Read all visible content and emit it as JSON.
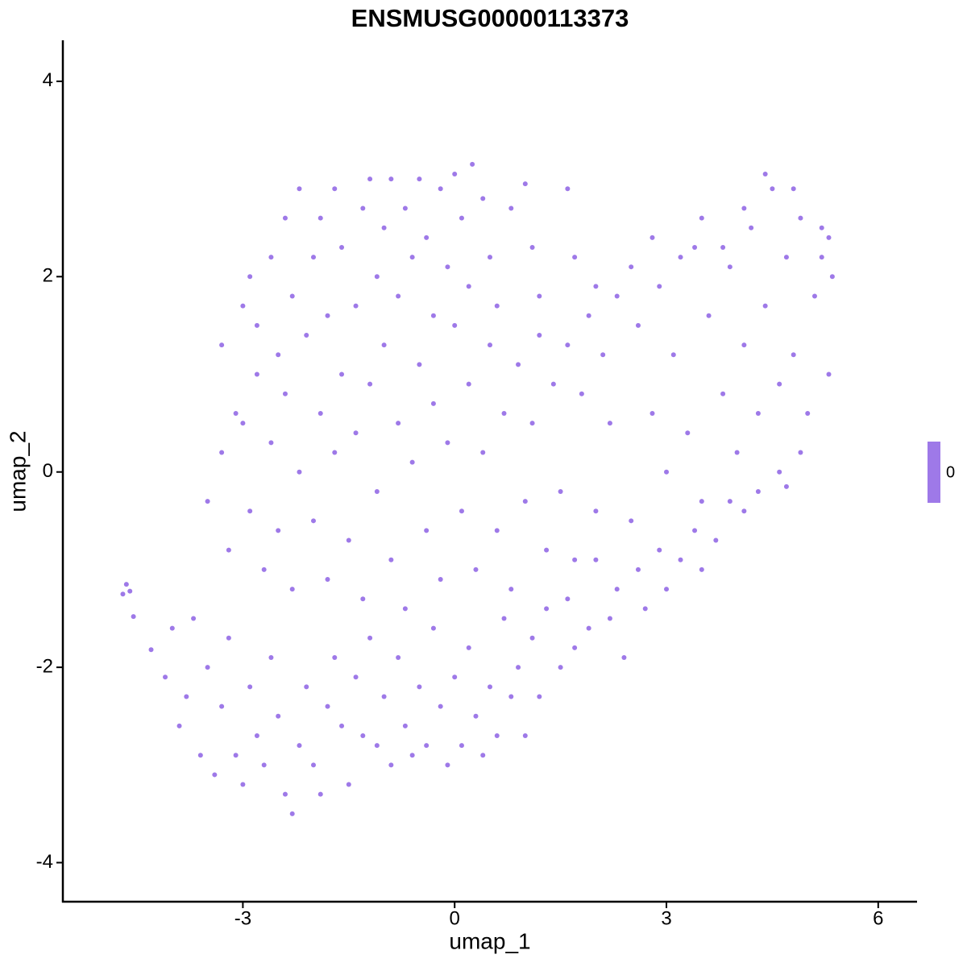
{
  "chart_data": {
    "type": "scatter",
    "title": "ENSMUSG00000113373",
    "x_label": "umap_1",
    "y_label": "umap_2",
    "xlim": [
      -5.55,
      6.55
    ],
    "ylim": [
      -4.4,
      4.42
    ],
    "xticks": [
      -3,
      0,
      3,
      6
    ],
    "yticks": [
      -4,
      -2,
      0,
      2,
      4
    ],
    "grid": false,
    "legend": {
      "labels": [
        0
      ],
      "color": "#9e79e8"
    },
    "x": [
      -4.7,
      -4.65,
      -4.6,
      -4.55,
      -4.3,
      -4.1,
      -4.0,
      -3.9,
      -3.8,
      -3.7,
      -3.6,
      -3.5,
      -3.4,
      -3.3,
      -3.2,
      -3.1,
      -3.0,
      -2.9,
      -2.8,
      -2.7,
      -2.6,
      -2.5,
      -2.4,
      -2.3,
      -2.2,
      -2.1,
      -2.0,
      -1.9,
      -1.8,
      -1.7,
      -1.6,
      -1.5,
      -1.4,
      -1.3,
      -1.2,
      -1.1,
      -1.0,
      -0.9,
      -0.8,
      -0.7,
      -0.6,
      -0.5,
      -0.4,
      -0.3,
      -0.2,
      -0.1,
      0.0,
      0.1,
      0.2,
      0.3,
      0.4,
      0.5,
      0.6,
      0.7,
      0.8,
      0.9,
      1.0,
      1.1,
      1.2,
      1.3,
      1.5,
      1.6,
      1.7,
      1.9,
      2.0,
      2.2,
      2.3,
      2.4,
      2.6,
      2.7,
      2.9,
      3.0,
      3.2,
      3.4,
      3.5,
      3.7,
      3.9,
      4.1,
      4.3,
      4.6,
      4.7,
      4.9,
      -3.5,
      -3.3,
      -3.2,
      -3.0,
      -2.9,
      -2.8,
      -2.7,
      -2.6,
      -2.5,
      -2.4,
      -2.3,
      -2.2,
      -2.1,
      -2.0,
      -1.9,
      -1.8,
      -1.7,
      -1.6,
      -1.5,
      -1.4,
      -1.3,
      -1.2,
      -1.1,
      -1.0,
      -0.9,
      -0.8,
      -0.7,
      -0.6,
      -0.5,
      -0.4,
      -0.3,
      -0.2,
      -0.1,
      0.0,
      0.1,
      0.2,
      0.3,
      0.4,
      0.5,
      0.6,
      0.7,
      0.8,
      0.9,
      1.0,
      1.1,
      1.2,
      1.3,
      1.4,
      1.5,
      1.6,
      1.7,
      1.8,
      1.9,
      2.0,
      2.1,
      2.2,
      2.3,
      2.5,
      2.6,
      2.8,
      2.9,
      3.0,
      3.1,
      3.3,
      3.4,
      3.5,
      3.6,
      3.8,
      3.9,
      4.0,
      4.1,
      4.2,
      4.3,
      4.4,
      4.5,
      4.6,
      4.7,
      4.8,
      4.9,
      5.0,
      5.1,
      5.2,
      5.3,
      5.35,
      5.3,
      -3.3,
      -3.1,
      -3.0,
      -2.9,
      -2.8,
      -2.6,
      -2.5,
      -2.4,
      -2.3,
      -2.2,
      -2.0,
      -1.9,
      -1.8,
      -1.7,
      -1.6,
      -1.4,
      -1.3,
      -1.2,
      -1.1,
      -1.0,
      -0.9,
      -0.8,
      -0.7,
      -0.6,
      -0.5,
      -0.4,
      -0.3,
      -0.2,
      -0.1,
      0.0,
      0.1,
      0.2,
      0.25,
      0.4,
      0.5,
      0.6,
      0.8,
      1.0,
      1.1,
      1.2,
      1.6,
      1.7,
      2.0,
      2.5,
      2.8,
      3.2,
      3.5,
      3.8,
      4.1,
      4.4,
      4.8,
      5.2
    ],
    "series": [
      {
        "name": "0",
        "color": "#9e79e8",
        "values": [
          -1.25,
          -1.15,
          -1.22,
          -1.48,
          -1.82,
          -2.1,
          -1.6,
          -2.6,
          -2.3,
          -1.5,
          -2.9,
          -2.0,
          -3.1,
          -2.4,
          -1.7,
          -2.9,
          -3.2,
          -2.2,
          -2.7,
          -3.0,
          -1.9,
          -2.5,
          -3.3,
          -3.5,
          -2.8,
          -2.2,
          -3.0,
          -3.3,
          -2.4,
          -1.9,
          -2.6,
          -3.2,
          -2.1,
          -2.7,
          -1.7,
          -2.8,
          -2.3,
          -3.0,
          -1.9,
          -2.6,
          -2.9,
          -2.2,
          -2.8,
          -1.6,
          -2.4,
          -3.0,
          -2.1,
          -2.8,
          -1.8,
          -2.5,
          -2.9,
          -2.2,
          -2.7,
          -1.5,
          -2.3,
          -2.0,
          -2.7,
          -1.7,
          -2.3,
          -1.4,
          -2.0,
          -1.3,
          -1.8,
          -1.6,
          -0.9,
          -1.5,
          -1.2,
          -1.9,
          -1.0,
          -1.4,
          -0.8,
          -1.2,
          -0.9,
          -0.6,
          -1.0,
          -0.7,
          -0.3,
          -0.4,
          -0.2,
          0.0,
          -0.15,
          0.2,
          -0.3,
          0.2,
          -0.8,
          0.5,
          -0.4,
          1.0,
          -1.0,
          0.3,
          -0.6,
          0.8,
          -1.2,
          0.0,
          1.4,
          -0.5,
          0.6,
          -1.1,
          0.2,
          1.0,
          -0.7,
          0.4,
          -1.3,
          0.9,
          -0.2,
          1.3,
          -0.9,
          0.5,
          -1.4,
          0.1,
          1.1,
          -0.6,
          0.7,
          -1.1,
          0.3,
          1.5,
          -0.4,
          0.9,
          -1.0,
          0.2,
          1.3,
          -0.6,
          0.6,
          -1.2,
          1.1,
          -0.3,
          0.5,
          1.4,
          -0.8,
          0.9,
          -0.2,
          1.3,
          -0.9,
          0.8,
          1.6,
          -0.4,
          1.2,
          0.5,
          1.8,
          -0.5,
          1.5,
          0.6,
          1.9,
          0.0,
          1.2,
          0.4,
          2.3,
          -0.3,
          1.6,
          0.8,
          2.1,
          0.2,
          1.3,
          2.5,
          0.6,
          1.7,
          2.9,
          0.9,
          2.2,
          1.2,
          2.6,
          0.6,
          1.8,
          2.2,
          1.0,
          2.0,
          2.4,
          1.3,
          0.6,
          1.7,
          2.0,
          1.5,
          2.2,
          1.2,
          2.6,
          1.8,
          2.9,
          2.2,
          2.6,
          1.6,
          2.9,
          2.3,
          1.7,
          2.7,
          3.0,
          2.0,
          2.5,
          3.0,
          1.8,
          2.7,
          2.2,
          3.0,
          2.4,
          1.6,
          2.9,
          2.1,
          3.05,
          2.6,
          1.9,
          3.15,
          2.8,
          2.2,
          1.7,
          2.7,
          2.95,
          2.3,
          1.8,
          2.9,
          2.2,
          1.9,
          2.1,
          2.4,
          2.2,
          2.6,
          2.3,
          2.7,
          3.05,
          2.9,
          2.5
        ]
      }
    ]
  }
}
